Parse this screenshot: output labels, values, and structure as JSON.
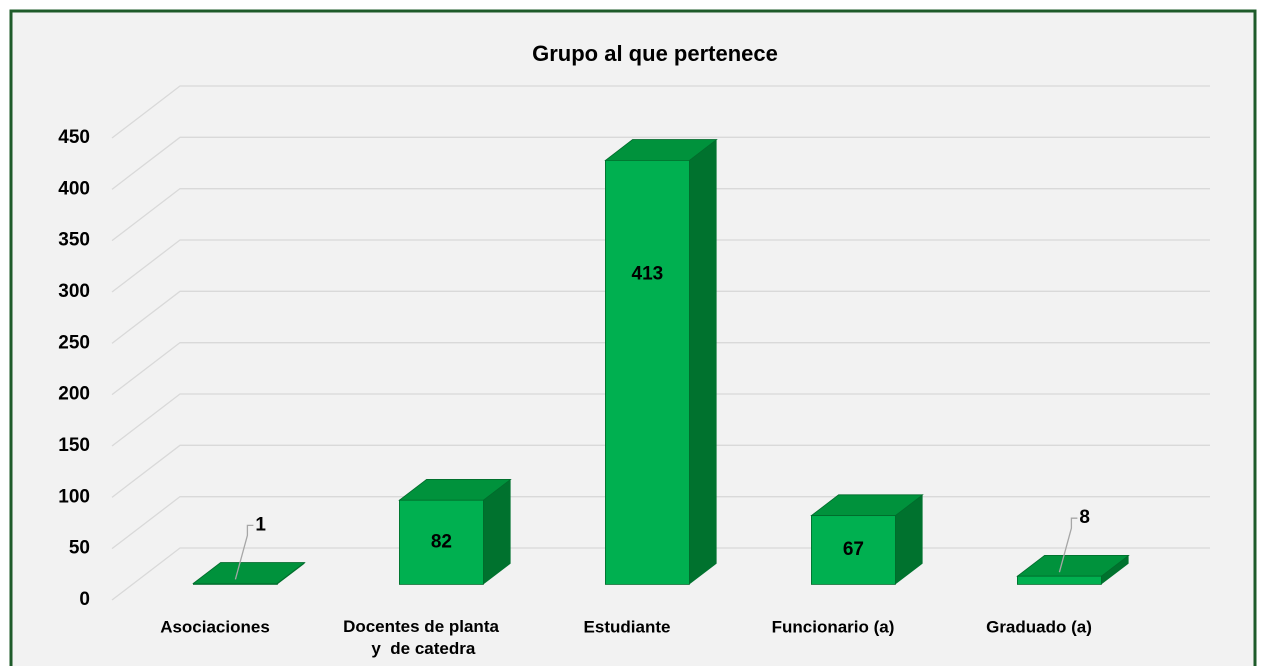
{
  "chart_data": {
    "type": "bar3d",
    "title": "Grupo al que pertenece",
    "categories": [
      "Asociaciones",
      "Docentes de planta\n y  de catedra",
      "Estudiante",
      "Funcionario (a)",
      "Graduado (a)"
    ],
    "values": [
      1,
      82,
      413,
      67,
      8
    ],
    "color": "#00b050",
    "ylim": [
      0,
      450
    ],
    "yticks": [
      0,
      50,
      100,
      150,
      200,
      250,
      300,
      350,
      400,
      450
    ],
    "grid": true
  }
}
